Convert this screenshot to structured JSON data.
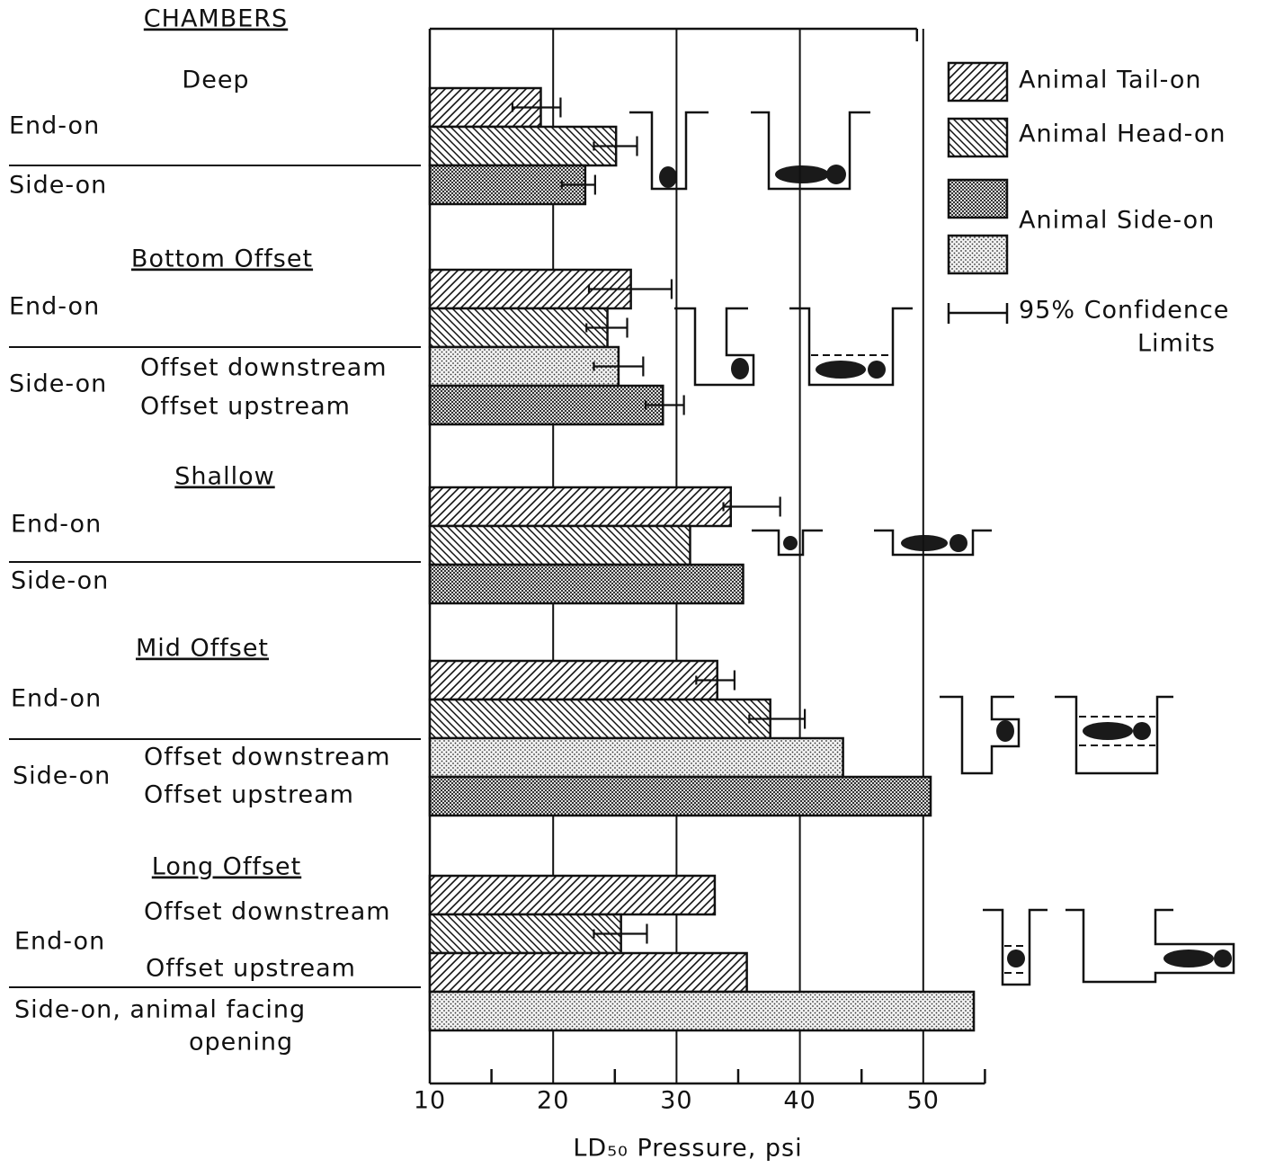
{
  "chart_data": {
    "type": "bar",
    "orientation": "horizontal",
    "header": "CHAMBERS",
    "x_label": "LD₅₀ Pressure, psi",
    "xlim": [
      10,
      55
    ],
    "xticks": [
      10,
      20,
      30,
      40,
      50
    ],
    "minor_xticks": [
      15,
      25,
      35,
      45,
      55
    ],
    "grid": true,
    "legend": {
      "position": "upper right",
      "items": [
        {
          "label": "Animal Tail-on",
          "patterns": [
            "hatch-up"
          ]
        },
        {
          "label": "Animal Head-on",
          "patterns": [
            "hatch-down"
          ]
        },
        {
          "label": "Animal Side-on",
          "patterns": [
            "crosshatch",
            "dots"
          ]
        }
      ],
      "ci_label": [
        "95% Confidence",
        "Limits"
      ]
    },
    "groups": [
      {
        "title": "Deep",
        "underline": false,
        "labels": [
          "End-on",
          "Side-on"
        ],
        "bars": [
          {
            "pattern": "hatch-up",
            "value": 19,
            "ci": [
              16.7,
              20.6
            ]
          },
          {
            "pattern": "hatch-down",
            "value": 25.1,
            "ci": [
              23.3,
              26.8
            ]
          },
          {
            "pattern": "crosshatch",
            "value": 22.6,
            "ci": [
              20.7,
              23.4
            ]
          }
        ]
      },
      {
        "title": "Bottom Offset",
        "underline": true,
        "labels": [
          "End-on",
          "Side-on",
          "Offset downstream",
          "Offset upstream"
        ],
        "bars": [
          {
            "pattern": "hatch-up",
            "value": 26.3,
            "ci": [
              22.9,
              29.6
            ]
          },
          {
            "pattern": "hatch-down",
            "value": 24.4,
            "ci": [
              22.7,
              26
            ]
          },
          {
            "pattern": "dots",
            "value": 25.3,
            "ci": [
              23.3,
              27.3
            ]
          },
          {
            "pattern": "crosshatch",
            "value": 28.9,
            "ci": [
              27.5,
              30.6
            ]
          }
        ]
      },
      {
        "title": "Shallow",
        "underline": true,
        "labels": [
          "End-on",
          "Side-on"
        ],
        "bars": [
          {
            "pattern": "hatch-up",
            "value": 34.4,
            "ci": [
              33.8,
              38.4
            ]
          },
          {
            "pattern": "hatch-down",
            "value": 31.1
          },
          {
            "pattern": "crosshatch",
            "value": 35.4
          }
        ]
      },
      {
        "title": "Mid Offset",
        "underline": true,
        "labels": [
          "End-on",
          "Side-on",
          "Offset downstream",
          "Offset upstream"
        ],
        "bars": [
          {
            "pattern": "hatch-up",
            "value": 33.3,
            "ci": [
              31.6,
              34.7
            ]
          },
          {
            "pattern": "hatch-down",
            "value": 37.6,
            "ci": [
              35.9,
              40.4
            ]
          },
          {
            "pattern": "dots",
            "value": 43.5
          },
          {
            "pattern": "crosshatch",
            "value": 50.6
          }
        ]
      },
      {
        "title": "Long Offset",
        "underline": true,
        "labels": [
          "Offset downstream",
          "End-on",
          "Offset upstream",
          "Side-on, animal facing",
          "opening"
        ],
        "bars": [
          {
            "pattern": "hatch-up",
            "value": 33.1
          },
          {
            "pattern": "hatch-down",
            "value": 25.5,
            "ci": [
              23.3,
              27.6
            ]
          },
          {
            "pattern": "hatch-up",
            "value": 35.7
          },
          {
            "pattern": "dots",
            "value": 54.1
          }
        ]
      }
    ]
  }
}
